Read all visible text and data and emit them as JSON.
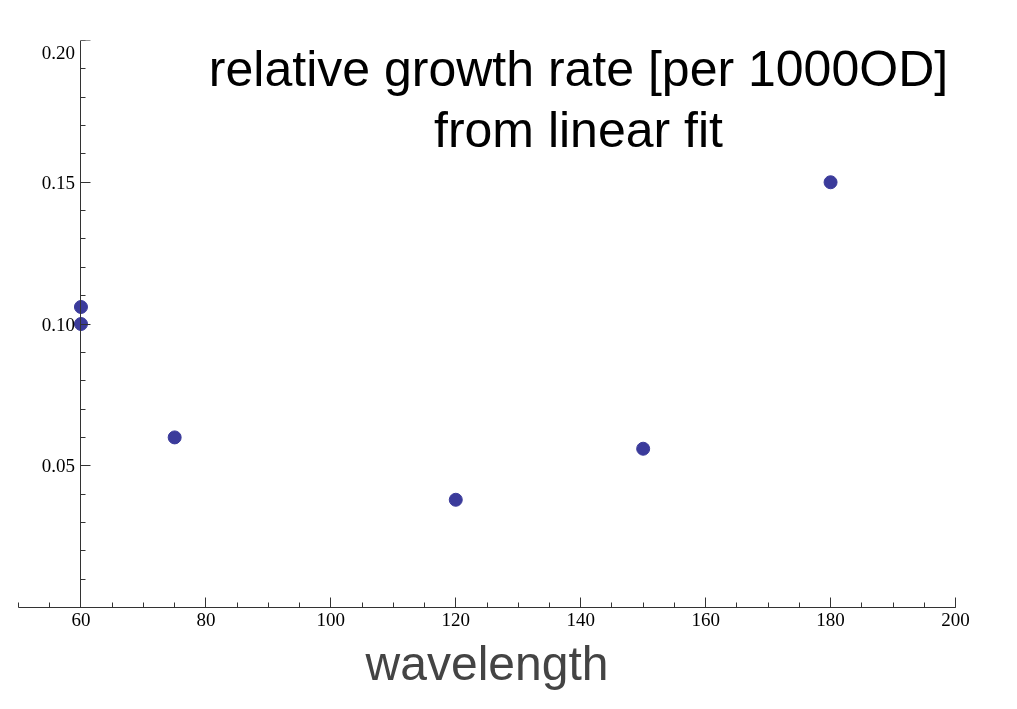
{
  "chart_data": {
    "type": "scatter",
    "title": "relative growth rate [per 1000OD]\nfrom linear fit",
    "xlabel": "wavelength",
    "x": [
      60,
      60,
      75,
      120,
      150,
      180
    ],
    "series": [
      {
        "color": "#3b3b9b",
        "values": [
          0.106,
          0.1,
          0.06,
          0.038,
          0.056,
          0.15
        ]
      }
    ],
    "xlim": [
      50,
      200
    ],
    "ylim": [
      0,
      0.2
    ],
    "xticks": [
      60,
      80,
      100,
      120,
      140,
      160,
      180,
      200
    ],
    "yticks": [
      {
        "value": 0.05,
        "label": "0.05"
      },
      {
        "value": 0.1,
        "label": "0.10"
      },
      {
        "value": 0.15,
        "label": "0.15"
      },
      {
        "value": 0.2,
        "label": "0.20"
      }
    ],
    "grid": false,
    "marker": "circle"
  }
}
